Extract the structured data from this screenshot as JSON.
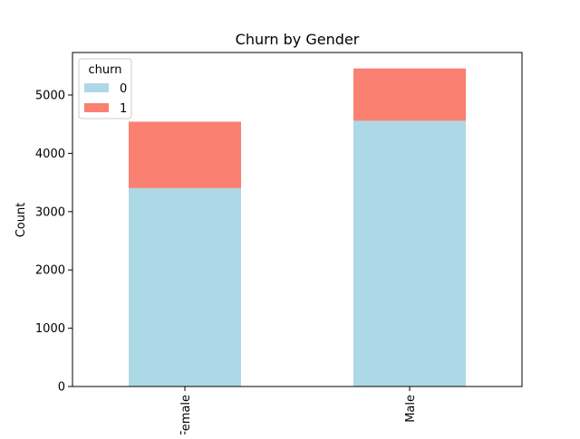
{
  "chart_data": {
    "type": "bar",
    "stacked": true,
    "title": "Churn by Gender",
    "xlabel": "",
    "ylabel": "Count",
    "categories": [
      "Female",
      "Male"
    ],
    "series": [
      {
        "name": "0",
        "values": [
          3404,
          4559
        ],
        "color": "#add8e6"
      },
      {
        "name": "1",
        "values": [
          1139,
          898
        ],
        "color": "#fa8072"
      }
    ],
    "ylim": [
      0,
      5730
    ],
    "yticks": [
      0,
      1000,
      2000,
      3000,
      4000,
      5000
    ],
    "legend": {
      "title": "churn",
      "placement": "top-left"
    },
    "grid": false
  }
}
